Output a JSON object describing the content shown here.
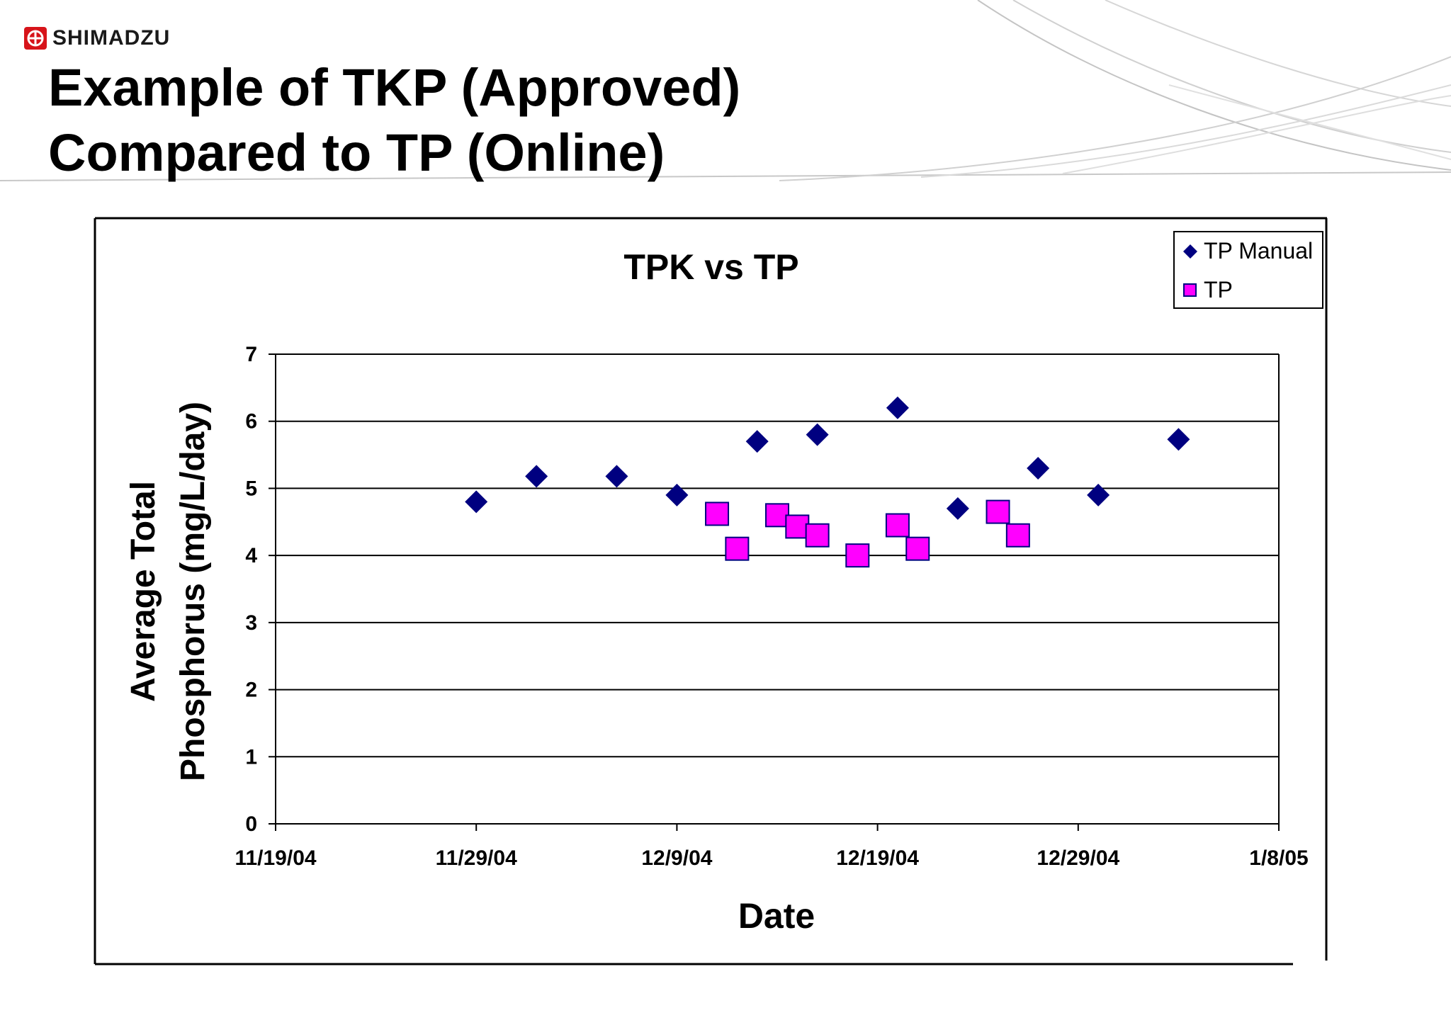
{
  "brand": {
    "name": "SHIMADZU",
    "accent": "#d7141a"
  },
  "slide": {
    "title_line1": "Example of TKP (Approved)",
    "title_line2": "Compared to TP (Online)"
  },
  "chart_data": {
    "type": "scatter",
    "title": "TPK vs TP",
    "xlabel": "Date",
    "ylabel_line1": "Average Total",
    "ylabel_line2": "Phosphorus (mg/L/day)",
    "x_ticks": [
      "11/19/04",
      "11/29/04",
      "12/9/04",
      "12/19/04",
      "12/29/04",
      "1/8/05"
    ],
    "xlim": [
      "11/19/04",
      "1/8/05"
    ],
    "y_ticks": [
      0,
      1,
      2,
      3,
      4,
      5,
      6,
      7
    ],
    "ylim": [
      0,
      7
    ],
    "grid": "horizontal",
    "legend_position": "top-right",
    "series": [
      {
        "name": "TP Manual",
        "marker": "diamond",
        "color": "#000080",
        "points": [
          {
            "x": "11/29/04",
            "y": 4.8
          },
          {
            "x": "12/2/04",
            "y": 5.18
          },
          {
            "x": "12/6/04",
            "y": 5.18
          },
          {
            "x": "12/9/04",
            "y": 4.9
          },
          {
            "x": "12/13/04",
            "y": 5.7
          },
          {
            "x": "12/16/04",
            "y": 5.8
          },
          {
            "x": "12/20/04",
            "y": 6.2
          },
          {
            "x": "12/23/04",
            "y": 4.7
          },
          {
            "x": "12/27/04",
            "y": 5.3
          },
          {
            "x": "12/30/04",
            "y": 4.9
          },
          {
            "x": "1/3/05",
            "y": 5.73
          }
        ]
      },
      {
        "name": "TP",
        "marker": "square",
        "color": "#ff00ff",
        "points": [
          {
            "x": "12/11/04",
            "y": 4.62
          },
          {
            "x": "12/12/04",
            "y": 4.1
          },
          {
            "x": "12/14/04",
            "y": 4.6
          },
          {
            "x": "12/15/04",
            "y": 4.43
          },
          {
            "x": "12/16/04",
            "y": 4.3
          },
          {
            "x": "12/18/04",
            "y": 4.0
          },
          {
            "x": "12/20/04",
            "y": 4.45
          },
          {
            "x": "12/21/04",
            "y": 4.1
          },
          {
            "x": "12/25/04",
            "y": 4.65
          },
          {
            "x": "12/26/04",
            "y": 4.3
          }
        ]
      }
    ]
  }
}
